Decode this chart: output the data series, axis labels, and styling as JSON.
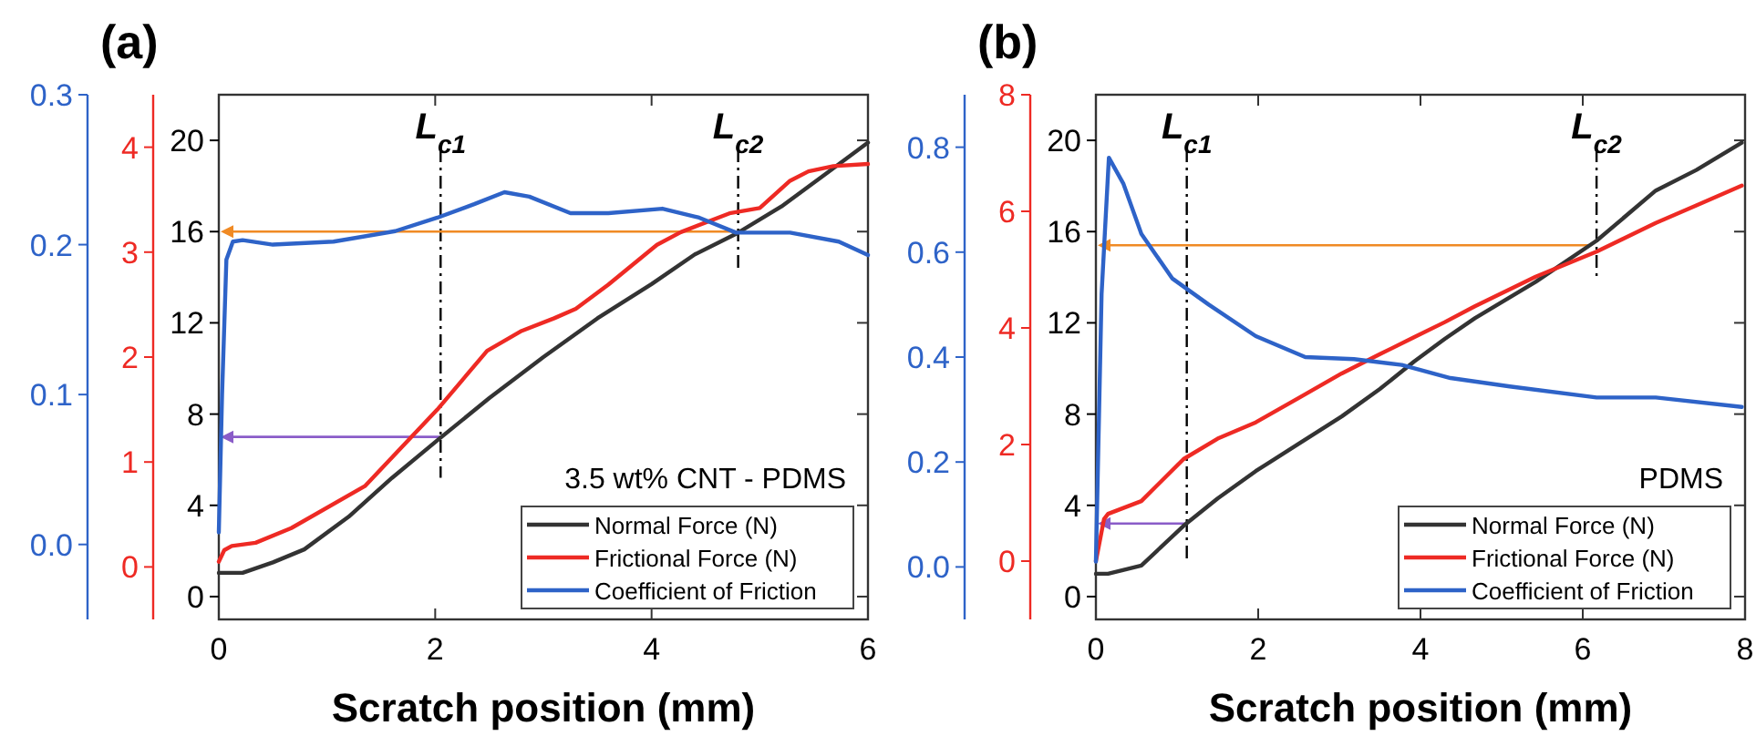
{
  "chart_data": [
    {
      "type": "line",
      "title": "(a)",
      "xlabel": "Scratch position (mm)",
      "annotations": [
        "3.5 wt% CNT - PDMS"
      ],
      "legend": "bottom right",
      "xlim": [
        0,
        6
      ],
      "xticks": [
        0,
        2,
        4,
        6
      ],
      "ylim": [
        -1,
        22
      ],
      "yticks": [
        0,
        4,
        8,
        12,
        16,
        20
      ],
      "y2lim": [
        -0.5,
        4.5
      ],
      "y2ticks": [
        0,
        1,
        2,
        3,
        4
      ],
      "y3lim": [
        -0.05,
        0.3
      ],
      "y3ticks": [
        {
          "value": 0,
          "label": "0.0"
        },
        {
          "value": 0.1,
          "label": "0.1"
        },
        {
          "value": 0.2,
          "label": "0.2"
        },
        {
          "value": 0.3,
          "label": "0.3"
        }
      ],
      "series": [
        {
          "name": "Normal Force (N)",
          "color": "#333333",
          "axis": "y",
          "x": [
            0,
            0.22,
            0.5,
            0.79,
            1.2,
            1.6,
            2.02,
            2.5,
            3,
            3.5,
            4,
            4.4,
            4.78,
            5.2,
            5.6,
            6
          ],
          "values": [
            1.04,
            1.04,
            1.5,
            2.07,
            3.5,
            5.2,
            6.85,
            8.7,
            10.5,
            12.2,
            13.7,
            15,
            15.9,
            17.1,
            18.5,
            19.9
          ]
        },
        {
          "name": "Frictional Force (N)",
          "color": "#ee2a24",
          "axis": "y2",
          "x": [
            0,
            0.05,
            0.12,
            0.34,
            0.67,
            1.35,
            2.02,
            2.48,
            2.8,
            3.1,
            3.3,
            3.6,
            4.05,
            4.27,
            4.72,
            5,
            5.28,
            5.45,
            5.68,
            6
          ],
          "values": [
            0.05,
            0.16,
            0.2,
            0.23,
            0.37,
            0.77,
            1.5,
            2.06,
            2.25,
            2.37,
            2.46,
            2.69,
            3.07,
            3.19,
            3.37,
            3.42,
            3.68,
            3.77,
            3.82,
            3.84
          ]
        },
        {
          "name": "Coefficient of Friction",
          "color": "#2e63c8",
          "axis": "y3",
          "x": [
            0,
            0.03,
            0.07,
            0.13,
            0.22,
            0.5,
            1.06,
            1.63,
            2.02,
            2.36,
            2.64,
            2.87,
            3.25,
            3.6,
            4.1,
            4.44,
            4.78,
            5.28,
            5.73,
            6
          ],
          "values": [
            0.008,
            0.1,
            0.19,
            0.202,
            0.203,
            0.2,
            0.202,
            0.209,
            0.218,
            0.227,
            0.235,
            0.232,
            0.221,
            0.221,
            0.224,
            0.218,
            0.208,
            0.208,
            0.202,
            0.193
          ]
        }
      ],
      "ref_lines": [
        {
          "axis": "x",
          "value": 2.05,
          "label": "L$_{c1}$",
          "color": "#000000",
          "line_style": "dashed"
        },
        {
          "axis": "x",
          "value": 4.8,
          "label": "L$_{c2}$",
          "color": "#000000",
          "line_style": "dashed"
        },
        {
          "axis": "y",
          "value": 16,
          "color": "#f08a24"
        },
        {
          "axis": "y",
          "value": 7,
          "color": "#8a5cc8"
        }
      ]
    },
    {
      "type": "line",
      "title": "(b)",
      "xlabel": "Scratch position (mm)",
      "annotations": [
        "PDMS"
      ],
      "legend": "bottom right",
      "xlim": [
        0,
        8
      ],
      "xticks": [
        0,
        2,
        4,
        6,
        8
      ],
      "ylim": [
        -1,
        22
      ],
      "yticks": [
        0,
        4,
        8,
        12,
        16,
        20
      ],
      "y2lim": [
        -1,
        8
      ],
      "y2ticks": [
        0,
        2,
        4,
        6,
        8
      ],
      "y3lim": [
        -0.1,
        0.9
      ],
      "y3ticks": [
        {
          "value": 0,
          "label": "0.0"
        },
        {
          "value": 0.2,
          "label": "0.2"
        },
        {
          "value": 0.4,
          "label": "0.4"
        },
        {
          "value": 0.6,
          "label": "0.6"
        },
        {
          "value": 0.8,
          "label": "0.8"
        }
      ],
      "series": [
        {
          "name": "Normal Force (N)",
          "color": "#333333",
          "axis": "y",
          "x": [
            0,
            0.15,
            0.56,
            1.08,
            1.5,
            1.97,
            2.5,
            3.03,
            3.5,
            3.92,
            4.3,
            4.67,
            5.42,
            6.17,
            6.9,
            7.4,
            7.96
          ],
          "values": [
            1,
            1,
            1.36,
            3.1,
            4.3,
            5.5,
            6.7,
            7.9,
            9.1,
            10.3,
            11.3,
            12.2,
            13.8,
            15.6,
            17.8,
            18.7,
            19.9
          ]
        },
        {
          "name": "Frictional Force (N)",
          "color": "#ee2a24",
          "axis": "y2",
          "x": [
            0,
            0.1,
            0.15,
            0.56,
            1.08,
            1.5,
            1.97,
            2.5,
            3.03,
            3.5,
            3.92,
            4.3,
            4.67,
            5.42,
            6.17,
            6.9,
            7.4,
            7.96
          ],
          "values": [
            0,
            0.72,
            0.81,
            1.03,
            1.75,
            2.1,
            2.38,
            2.8,
            3.22,
            3.55,
            3.84,
            4.1,
            4.37,
            4.88,
            5.31,
            5.8,
            6.1,
            6.44
          ]
        },
        {
          "name": "Coefficient of Friction",
          "color": "#2e63c8",
          "axis": "y3",
          "x": [
            0,
            0.07,
            0.16,
            0.34,
            0.56,
            0.94,
            1.39,
            1.97,
            2.58,
            3.18,
            3.77,
            4.37,
            5.1,
            6.17,
            6.9,
            7.96
          ],
          "values": [
            0.01,
            0.52,
            0.78,
            0.73,
            0.635,
            0.55,
            0.5,
            0.44,
            0.4,
            0.396,
            0.385,
            0.36,
            0.344,
            0.323,
            0.323,
            0.305
          ]
        }
      ],
      "ref_lines": [
        {
          "axis": "x",
          "value": 1.12,
          "label": "L$_{c1}$",
          "color": "#000000",
          "line_style": "dashed"
        },
        {
          "axis": "x",
          "value": 6.17,
          "label": "L$_{c2}$",
          "color": "#000000",
          "line_style": "dashed"
        },
        {
          "axis": "y",
          "value": 15.4,
          "color": "#f08a24"
        },
        {
          "axis": "y",
          "value": 3.2,
          "color": "#8a5cc8"
        }
      ]
    }
  ]
}
